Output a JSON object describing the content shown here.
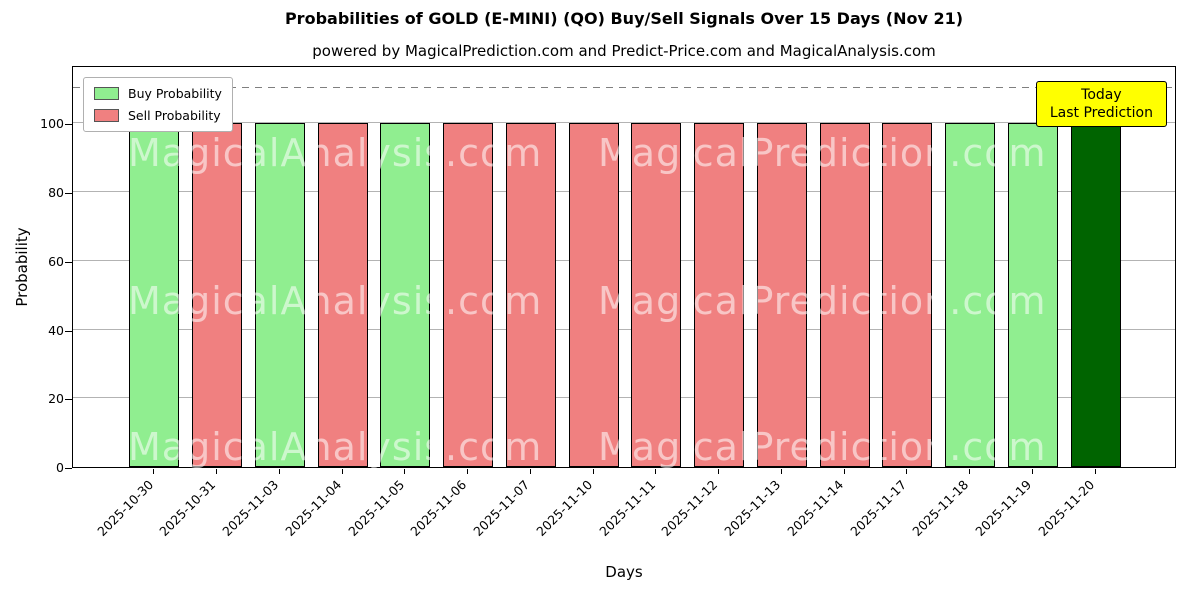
{
  "title": "Probabilities of GOLD (E-MINI) (QO) Buy/Sell Signals Over 15 Days (Nov 21)",
  "subtitle": "powered by MagicalPrediction.com and Predict-Price.com and MagicalAnalysis.com",
  "xlabel": "Days",
  "ylabel": "Probability",
  "legend": {
    "items": [
      {
        "label": "Buy Probability",
        "color": "#90ee90"
      },
      {
        "label": "Sell Probability",
        "color": "#f08080"
      }
    ]
  },
  "annotation": {
    "line1": "Today",
    "line2": "Last Prediction",
    "bg_color": "#ffff00"
  },
  "watermarks": {
    "left": "MagicalAnalysis.com",
    "right": "MagicalPrediction.com"
  },
  "chart_data": {
    "type": "bar",
    "title": "Probabilities of GOLD (E-MINI) (QO) Buy/Sell Signals Over 15 Days (Nov 21)",
    "xlabel": "Days",
    "ylabel": "Probability",
    "ylim": [
      0,
      117
    ],
    "yticks": [
      0,
      20,
      40,
      60,
      80,
      100
    ],
    "dashed_line_y": 110,
    "grid": true,
    "legend_position": "upper left",
    "categories": [
      "2025-10-30",
      "2025-10-31",
      "2025-11-03",
      "2025-11-04",
      "2025-11-05",
      "2025-11-06",
      "2025-11-07",
      "2025-11-10",
      "2025-11-11",
      "2025-11-12",
      "2025-11-13",
      "2025-11-14",
      "2025-11-17",
      "2025-11-18",
      "2025-11-19",
      "2025-11-20"
    ],
    "values": [
      100,
      100,
      100,
      100,
      100,
      100,
      100,
      100,
      100,
      100,
      100,
      100,
      100,
      100,
      100,
      100
    ],
    "signals": [
      "buy",
      "sell",
      "buy",
      "sell",
      "buy",
      "sell",
      "sell",
      "sell",
      "sell",
      "sell",
      "sell",
      "sell",
      "sell",
      "buy",
      "buy",
      "today"
    ],
    "colors": {
      "buy": "#90ee90",
      "sell": "#f08080",
      "today": "#006400"
    },
    "bar_edge_color": "#000000",
    "grid_color": "#b3b3b3"
  }
}
